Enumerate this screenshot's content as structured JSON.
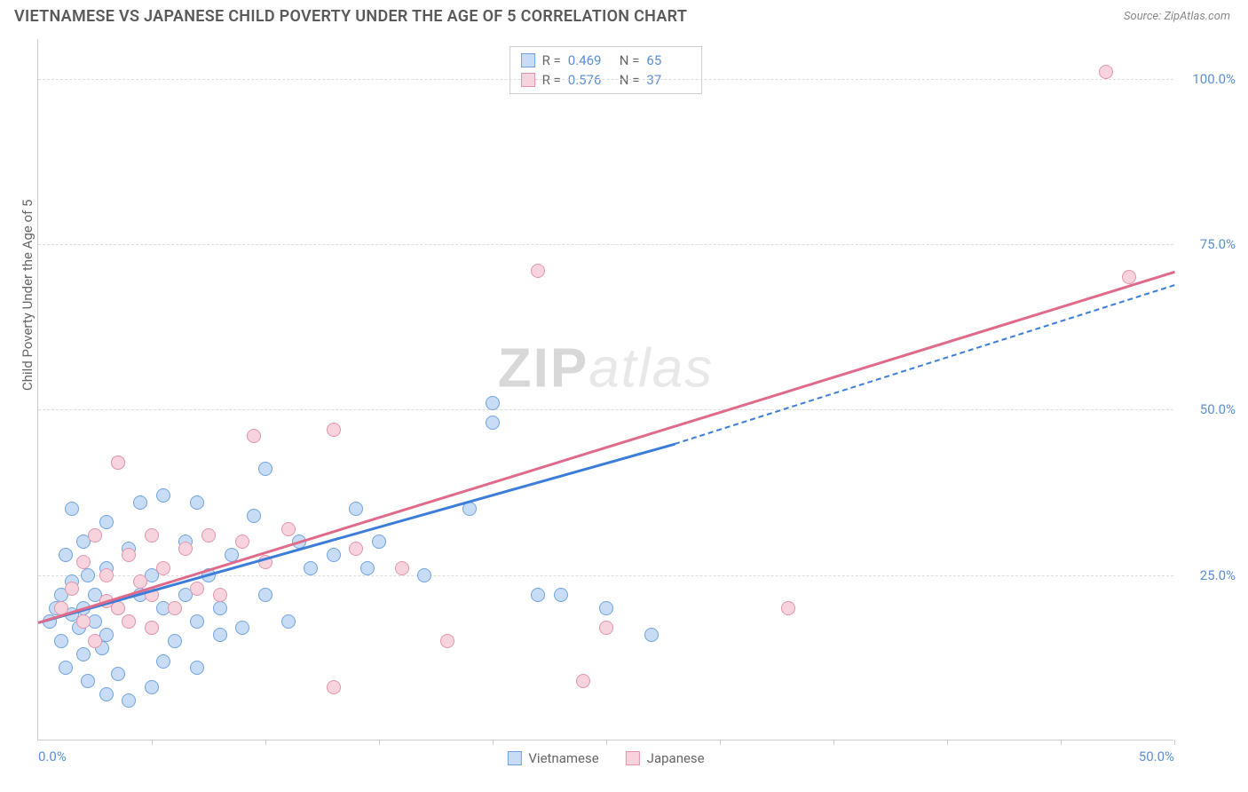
{
  "title": "VIETNAMESE VS JAPANESE CHILD POVERTY UNDER THE AGE OF 5 CORRELATION CHART",
  "source_label": "Source: ",
  "source_value": "ZipAtlas.com",
  "y_axis_title": "Child Poverty Under the Age of 5",
  "watermark_a": "ZIP",
  "watermark_b": "atlas",
  "chart": {
    "type": "scatter",
    "xlim": [
      0,
      50
    ],
    "ylim": [
      0,
      106
    ],
    "x_ticks": [
      0,
      5,
      10,
      15,
      20,
      25,
      30,
      35,
      40,
      45,
      50
    ],
    "x_tick_labels": {
      "0": "0.0%",
      "50": "50.0%"
    },
    "y_ticks": [
      25,
      50,
      75,
      100
    ],
    "y_tick_labels": {
      "25": "25.0%",
      "50": "50.0%",
      "75": "75.0%",
      "100": "100.0%"
    },
    "background_color": "#ffffff",
    "grid_color_h": "#dddddd",
    "grid_color_v": "#e8e8e8",
    "point_radius": 8,
    "series": [
      {
        "name": "Vietnamese",
        "fill": "#c8ddf5",
        "stroke": "#6fa3e0",
        "r_label": "R =",
        "r_value": "0.469",
        "n_label": "N =",
        "n_value": "65",
        "trend": {
          "x1": 0,
          "y1": 18,
          "x2_solid": 28,
          "y2_solid": 45,
          "x2": 50,
          "y2": 69,
          "color": "#3b7dd8"
        },
        "points": [
          [
            0.5,
            18
          ],
          [
            0.8,
            20
          ],
          [
            1,
            15
          ],
          [
            1,
            22
          ],
          [
            1.2,
            11
          ],
          [
            1.2,
            28
          ],
          [
            1.5,
            19
          ],
          [
            1.5,
            24
          ],
          [
            1.5,
            35
          ],
          [
            1.8,
            17
          ],
          [
            2,
            13
          ],
          [
            2,
            20
          ],
          [
            2,
            30
          ],
          [
            2.2,
            9
          ],
          [
            2.2,
            25
          ],
          [
            2.5,
            18
          ],
          [
            2.5,
            22
          ],
          [
            2.8,
            14
          ],
          [
            3,
            7
          ],
          [
            3,
            16
          ],
          [
            3,
            26
          ],
          [
            3,
            33
          ],
          [
            3.5,
            10
          ],
          [
            3.5,
            20
          ],
          [
            3.5,
            42
          ],
          [
            4,
            6
          ],
          [
            4,
            18
          ],
          [
            4,
            29
          ],
          [
            4.5,
            22
          ],
          [
            4.5,
            36
          ],
          [
            5,
            8
          ],
          [
            5,
            17
          ],
          [
            5,
            25
          ],
          [
            5.5,
            12
          ],
          [
            5.5,
            20
          ],
          [
            5.5,
            37
          ],
          [
            6,
            15
          ],
          [
            6.5,
            22
          ],
          [
            6.5,
            30
          ],
          [
            7,
            11
          ],
          [
            7,
            18
          ],
          [
            7,
            36
          ],
          [
            7.5,
            25
          ],
          [
            8,
            16
          ],
          [
            8,
            20
          ],
          [
            8.5,
            28
          ],
          [
            9,
            17
          ],
          [
            9.5,
            34
          ],
          [
            10,
            22
          ],
          [
            10,
            41
          ],
          [
            11,
            18
          ],
          [
            11.5,
            30
          ],
          [
            12,
            26
          ],
          [
            13,
            28
          ],
          [
            14,
            35
          ],
          [
            14.5,
            26
          ],
          [
            15,
            30
          ],
          [
            17,
            25
          ],
          [
            19,
            35
          ],
          [
            20,
            48
          ],
          [
            20,
            51
          ],
          [
            22,
            22
          ],
          [
            23,
            22
          ],
          [
            25,
            20
          ],
          [
            27,
            16
          ]
        ]
      },
      {
        "name": "Japanese",
        "fill": "#f7d4dd",
        "stroke": "#e394ab",
        "r_label": "R =",
        "r_value": "0.576",
        "n_label": "N =",
        "n_value": "37",
        "trend": {
          "x1": 0,
          "y1": 18,
          "x2_solid": 50,
          "y2_solid": 71,
          "x2": 50,
          "y2": 71,
          "color": "#e06a8a"
        },
        "points": [
          [
            1,
            20
          ],
          [
            1.5,
            23
          ],
          [
            2,
            18
          ],
          [
            2,
            27
          ],
          [
            2.5,
            15
          ],
          [
            2.5,
            31
          ],
          [
            3,
            21
          ],
          [
            3,
            25
          ],
          [
            3.5,
            20
          ],
          [
            3.5,
            42
          ],
          [
            4,
            18
          ],
          [
            4,
            28
          ],
          [
            4.5,
            24
          ],
          [
            5,
            17
          ],
          [
            5,
            22
          ],
          [
            5,
            31
          ],
          [
            5.5,
            26
          ],
          [
            6,
            20
          ],
          [
            6.5,
            29
          ],
          [
            7,
            23
          ],
          [
            7.5,
            31
          ],
          [
            8,
            22
          ],
          [
            9,
            30
          ],
          [
            9.5,
            46
          ],
          [
            10,
            27
          ],
          [
            11,
            32
          ],
          [
            13,
            47
          ],
          [
            13,
            8
          ],
          [
            14,
            29
          ],
          [
            16,
            26
          ],
          [
            18,
            15
          ],
          [
            22,
            71
          ],
          [
            24,
            9
          ],
          [
            25,
            17
          ],
          [
            33,
            20
          ],
          [
            47,
            101
          ],
          [
            48,
            70
          ]
        ]
      }
    ]
  }
}
